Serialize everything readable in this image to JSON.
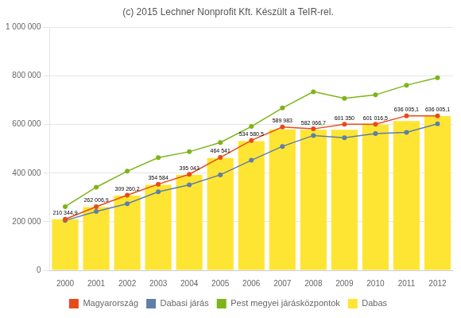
{
  "chart_data": {
    "type": "bar",
    "title": "(c) 2015 Lechner Nonprofit Kft. Készült a TeIR-rel.",
    "categories": [
      "2000",
      "2001",
      "2002",
      "2003",
      "2004",
      "2005",
      "2006",
      "2007",
      "2008",
      "2009",
      "2010",
      "2011",
      "2012"
    ],
    "series": [
      {
        "name": "Magyarország",
        "type": "line",
        "color": "#E84B1A",
        "marker": "circle",
        "values": [
          210344.9,
          262006.9,
          309260.2,
          354584.0,
          395043.0,
          464541.0,
          534580.5,
          589983.0,
          582066.7,
          601350.0,
          601016.5,
          636005.1,
          636005.1
        ],
        "data_labels": true,
        "value_labels": [
          "210 344,9",
          "262 006,9",
          "309 260,2",
          "354 584",
          "395 043",
          "464 541",
          "534 580,5",
          "589 983",
          "582 066,7",
          "601 350",
          "601 016,5",
          "636 005,1",
          "636 005,1"
        ]
      },
      {
        "name": "Dabasi járás",
        "type": "line",
        "color": "#5F7EA8",
        "marker": "circle",
        "values": [
          205000,
          242000,
          274000,
          323000,
          352000,
          393000,
          453000,
          510000,
          555000,
          546000,
          563000,
          568000,
          603000
        ]
      },
      {
        "name": "Pest megyei járásközpontok",
        "type": "line",
        "color": "#7CB518",
        "marker": "circle",
        "values": [
          262000,
          342000,
          408000,
          464000,
          488000,
          526000,
          592000,
          668000,
          735000,
          708000,
          722000,
          762000,
          793000
        ]
      },
      {
        "name": "Dabas",
        "type": "bar",
        "color": "#FFE533",
        "values": [
          210000,
          260000,
          308000,
          352000,
          393000,
          462000,
          532000,
          580000,
          578000,
          578000,
          600000,
          614000,
          635000
        ]
      }
    ],
    "ylim": [
      0,
      1000000
    ],
    "yticks": [
      0,
      {
        "value": 200000,
        "label": "200 000"
      },
      {
        "value": 400000,
        "label": "400 000"
      },
      {
        "value": 600000,
        "label": "600 000"
      },
      {
        "value": 800000,
        "label": "800 000"
      },
      {
        "value": 1000000,
        "label": "1 000 000"
      }
    ],
    "grid": true,
    "legend": "bottom"
  }
}
